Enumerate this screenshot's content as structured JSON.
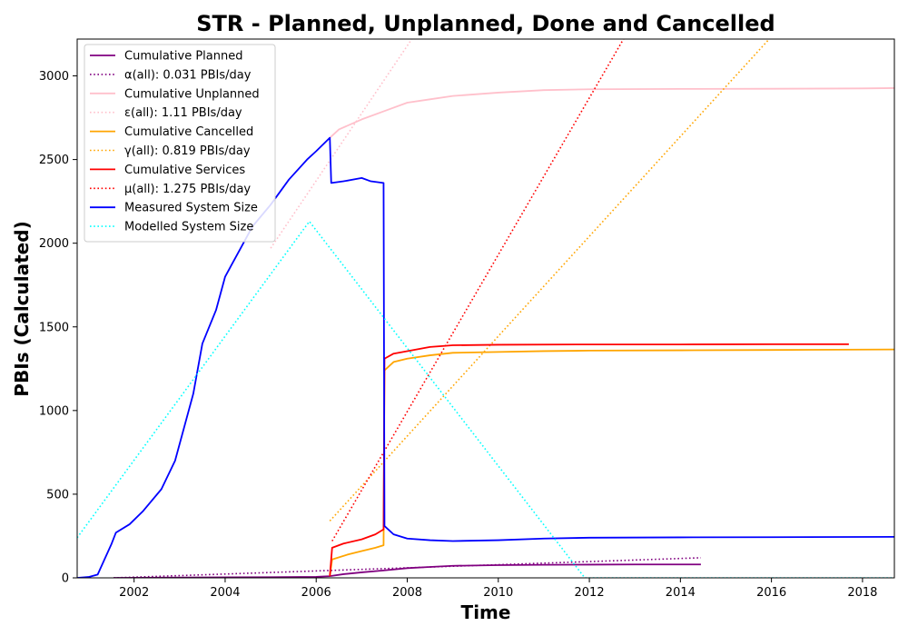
{
  "chart_data": {
    "type": "line",
    "title": "STR - Planned, Unplanned, Done  and Cancelled",
    "xlabel": "Time",
    "ylabel": "PBIs (Calculated)",
    "xlim": [
      2000.75,
      2018.7
    ],
    "ylim": [
      0,
      3220
    ],
    "xticks": [
      2002,
      2004,
      2006,
      2008,
      2010,
      2012,
      2014,
      2016,
      2018
    ],
    "yticks": [
      0,
      500,
      1000,
      1500,
      2000,
      2500,
      3000
    ],
    "grid": false,
    "legend_position": "top-left",
    "series": [
      {
        "name": "Cumulative Planned",
        "color": "#800080",
        "style": "solid",
        "points": [
          [
            2001.55,
            0
          ],
          [
            2003,
            2
          ],
          [
            2005,
            4
          ],
          [
            2006,
            6
          ],
          [
            2006.3,
            10
          ],
          [
            2006.6,
            22
          ],
          [
            2007.0,
            33
          ],
          [
            2007.5,
            45
          ],
          [
            2008,
            58
          ],
          [
            2008.5,
            65
          ],
          [
            2009,
            72
          ],
          [
            2009.5,
            74
          ],
          [
            2010,
            76
          ],
          [
            2011,
            78
          ],
          [
            2012,
            79
          ],
          [
            2013,
            80
          ],
          [
            2014.45,
            80
          ]
        ]
      },
      {
        "name": "α(all): 0.031 PBIs/day",
        "color": "#800080",
        "style": "dotted",
        "points": [
          [
            2001.55,
            0
          ],
          [
            2014.45,
            120
          ]
        ]
      },
      {
        "name": "Cumulative Unplanned",
        "color": "#ffc0cb",
        "style": "solid",
        "points": [
          [
            2006.3,
            2630
          ],
          [
            2006.5,
            2680
          ],
          [
            2007.0,
            2740
          ],
          [
            2007.5,
            2790
          ],
          [
            2008,
            2840
          ],
          [
            2008.5,
            2860
          ],
          [
            2009,
            2880
          ],
          [
            2010,
            2900
          ],
          [
            2011,
            2915
          ],
          [
            2012,
            2920
          ],
          [
            2014,
            2922
          ],
          [
            2016,
            2923
          ],
          [
            2018,
            2925
          ],
          [
            2018.7,
            2927
          ]
        ]
      },
      {
        "name": "ε(all): 1.11 PBIs/day",
        "color": "#ffc0cb",
        "style": "dotted",
        "points": [
          [
            2005.0,
            1970
          ],
          [
            2008.1,
            3220
          ]
        ]
      },
      {
        "name": "Cumulative Cancelled",
        "color": "#ffa500",
        "style": "solid",
        "points": [
          [
            2006.3,
            10
          ],
          [
            2006.35,
            110
          ],
          [
            2006.7,
            140
          ],
          [
            2007.0,
            160
          ],
          [
            2007.3,
            180
          ],
          [
            2007.48,
            195
          ],
          [
            2007.5,
            1240
          ],
          [
            2007.7,
            1290
          ],
          [
            2008,
            1310
          ],
          [
            2008.5,
            1330
          ],
          [
            2009,
            1345
          ],
          [
            2010,
            1350
          ],
          [
            2011,
            1355
          ],
          [
            2012,
            1358
          ],
          [
            2014,
            1360
          ],
          [
            2016,
            1362
          ],
          [
            2018.7,
            1365
          ]
        ]
      },
      {
        "name": "γ(all): 0.819 PBIs/day",
        "color": "#ffa500",
        "style": "dotted",
        "points": [
          [
            2006.3,
            340
          ],
          [
            2015.95,
            3220
          ]
        ]
      },
      {
        "name": "Cumulative Services",
        "color": "#ff0000",
        "style": "solid",
        "points": [
          [
            2006.3,
            10
          ],
          [
            2006.35,
            180
          ],
          [
            2006.6,
            205
          ],
          [
            2007.0,
            230
          ],
          [
            2007.3,
            260
          ],
          [
            2007.48,
            290
          ],
          [
            2007.5,
            1310
          ],
          [
            2007.7,
            1340
          ],
          [
            2008,
            1355
          ],
          [
            2008.5,
            1380
          ],
          [
            2009,
            1390
          ],
          [
            2010,
            1393
          ],
          [
            2012,
            1395
          ],
          [
            2014,
            1395
          ],
          [
            2016,
            1396
          ],
          [
            2017.7,
            1396
          ]
        ]
      },
      {
        "name": "μ(all): 1.275 PBIs/day",
        "color": "#ff0000",
        "style": "dotted",
        "points": [
          [
            2006.35,
            220
          ],
          [
            2012.75,
            3220
          ]
        ]
      },
      {
        "name": "Measured System Size",
        "color": "#0000ff",
        "style": "solid",
        "points": [
          [
            2000.75,
            0
          ],
          [
            2001.0,
            5
          ],
          [
            2001.2,
            20
          ],
          [
            2001.3,
            80
          ],
          [
            2001.5,
            200
          ],
          [
            2001.6,
            270
          ],
          [
            2001.9,
            320
          ],
          [
            2002.2,
            400
          ],
          [
            2002.6,
            530
          ],
          [
            2002.9,
            700
          ],
          [
            2003.1,
            900
          ],
          [
            2003.3,
            1100
          ],
          [
            2003.5,
            1400
          ],
          [
            2003.8,
            1600
          ],
          [
            2004.0,
            1800
          ],
          [
            2004.3,
            1950
          ],
          [
            2004.6,
            2100
          ],
          [
            2005.0,
            2230
          ],
          [
            2005.4,
            2380
          ],
          [
            2005.8,
            2500
          ],
          [
            2006.0,
            2550
          ],
          [
            2006.3,
            2630
          ],
          [
            2006.33,
            2360
          ],
          [
            2006.6,
            2370
          ],
          [
            2007.0,
            2390
          ],
          [
            2007.2,
            2370
          ],
          [
            2007.48,
            2360
          ],
          [
            2007.5,
            310
          ],
          [
            2007.7,
            260
          ],
          [
            2008,
            235
          ],
          [
            2008.5,
            225
          ],
          [
            2009,
            220
          ],
          [
            2010,
            225
          ],
          [
            2011,
            235
          ],
          [
            2012,
            240
          ],
          [
            2014,
            242
          ],
          [
            2016,
            243
          ],
          [
            2018.7,
            245
          ]
        ]
      },
      {
        "name": "Modelled System Size",
        "color": "#00ffff",
        "style": "dotted",
        "points": [
          [
            2000.75,
            240
          ],
          [
            2005.85,
            2130
          ],
          [
            2011.9,
            0
          ],
          [
            2018.7,
            0
          ]
        ]
      }
    ]
  }
}
